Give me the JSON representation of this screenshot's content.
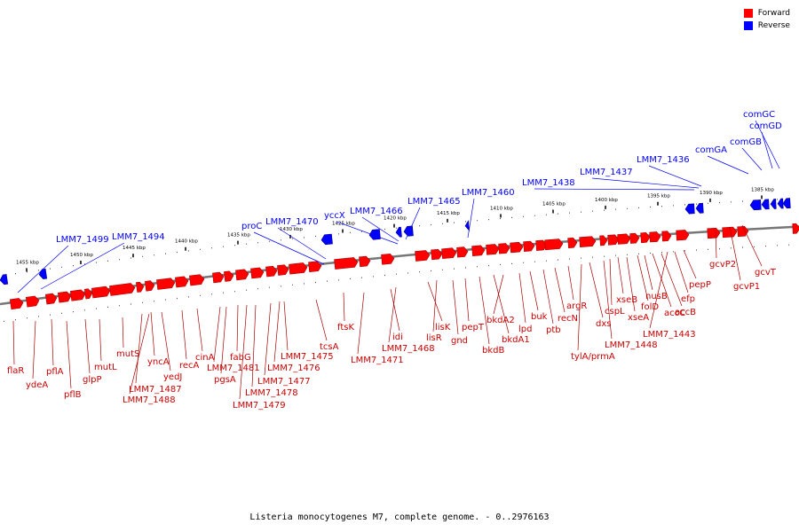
{
  "legend": [
    {
      "label": "Forward",
      "color": "#ff0000"
    },
    {
      "label": "Reverse",
      "color": "#0000ff"
    }
  ],
  "caption": "Listeria monocytogenes M7, complete genome. - 0..2976163",
  "colors": {
    "forward": "#ff0000",
    "reverse": "#0000ff",
    "backbone": "#777777"
  },
  "ruler_labels": [
    "1455 kbp",
    "1450 kbp",
    "1445 kbp",
    "1440 kbp",
    "1435 kbp",
    "1430 kbp",
    "1425 kbp",
    "1420 kbp",
    "1415 kbp",
    "1410 kbp",
    "1405 kbp",
    "1400 kbp",
    "1395 kbp",
    "1390 kbp",
    "1385 kbp"
  ],
  "reverse_genes": [
    "LMM7_1499",
    "LMM7_1494",
    "proC",
    "LMM7_1470",
    "yccX",
    "LMM7_1466",
    "LMM7_1465",
    "LMM7_1460",
    "LMM7_1438",
    "LMM7_1437",
    "LMM7_1436",
    "comGA",
    "comGB",
    "comGD",
    "comGC"
  ],
  "forward_genes": [
    "flaR",
    "ydeA",
    "pflA",
    "pflB",
    "glpP",
    "mutL",
    "mutS",
    "LMM7_1487",
    "LMM7_1488",
    "yncA",
    "yedJ",
    "recA",
    "cinA",
    "LMM7_1481",
    "pgsA",
    "fabG",
    "LMM7_1478",
    "LMM7_1479",
    "LMM7_1477",
    "LMM7_1476",
    "LMM7_1475",
    "tcsA",
    "ftsK",
    "LMM7_1471",
    "idi",
    "LMM7_1468",
    "lisK",
    "lisR",
    "gnd",
    "pepT",
    "bkdB",
    "bkdA1",
    "bkdA2",
    "lpd",
    "buk",
    "ptb",
    "recN",
    "argR",
    "tylA/prmA",
    "dxs",
    "LMM7_1448",
    "cspL",
    "xseB",
    "xseA",
    "folD",
    "nusB",
    "accC",
    "accB",
    "LMM7_1443",
    "efp",
    "pepP",
    "gcvP2",
    "gcvP1",
    "gcvT"
  ]
}
